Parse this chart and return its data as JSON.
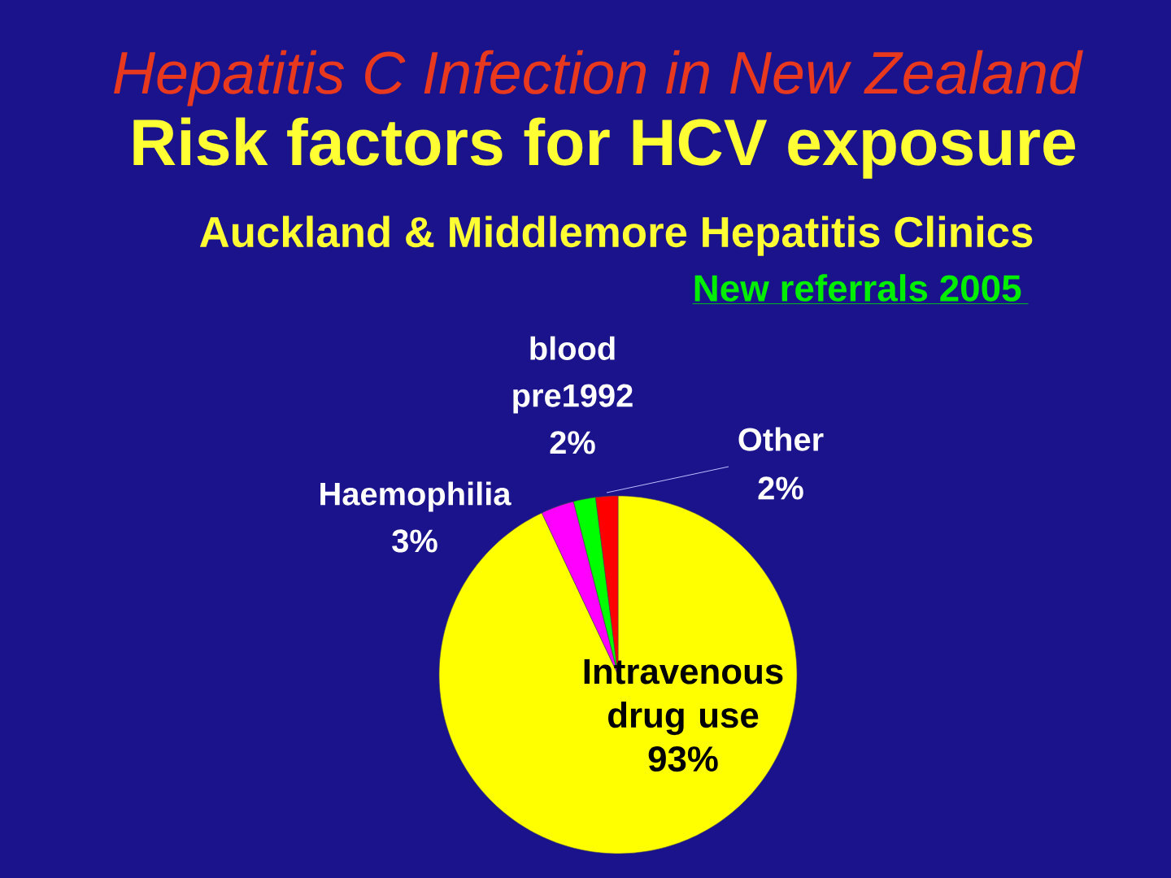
{
  "chart_data": {
    "type": "pie",
    "title": "Hepatitis C Infection in New Zealand",
    "subtitle": "Risk factors for HCV exposure",
    "annotations": [
      "Auckland & Middlemore Hepatitis Clinics",
      "New referrals 2005"
    ],
    "categories": [
      "Intravenous drug use",
      "Haemophilia",
      "blood pre1992",
      "Other"
    ],
    "values": [
      93,
      3,
      2,
      2
    ],
    "colors": [
      "#ffff00",
      "#ff00ff",
      "#00ff00",
      "#ff0000"
    ],
    "value_labels": [
      "93%",
      "3%",
      "2%",
      "2%"
    ]
  }
}
